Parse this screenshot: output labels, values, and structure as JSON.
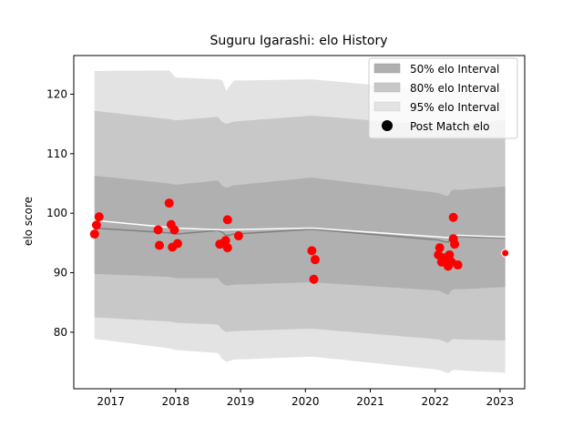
{
  "chart_data": {
    "type": "scatter",
    "title": "Suguru Igarashi: elo History",
    "xlabel": "",
    "ylabel": "elo score",
    "xlim": [
      2016.43,
      2023.38
    ],
    "ylim": [
      70.5,
      126.5
    ],
    "x_ticks": [
      2017,
      2018,
      2019,
      2020,
      2021,
      2022,
      2023
    ],
    "y_ticks": [
      80,
      90,
      100,
      110,
      120
    ],
    "colors": {
      "band_50": "#b0b0b0",
      "band_80": "#c8c8c8",
      "band_95": "#e3e3e3",
      "mean_line": "#808080",
      "post_match_line": "#ffffff",
      "points": "#ff0000"
    },
    "legend": {
      "position": "top-right",
      "entries": [
        "50% elo Interval",
        "80% elo Interval",
        "95% elo Interval",
        "Post Match elo"
      ]
    },
    "intervals": {
      "x": [
        2016.75,
        2017.9,
        2018.0,
        2018.65,
        2018.72,
        2018.78,
        2018.9,
        2020.1,
        2022.05,
        2022.15,
        2022.2,
        2022.25,
        2022.3,
        2022.35,
        2023.08
      ],
      "mean": [
        97.5,
        96.7,
        96.5,
        97.1,
        96.8,
        96.2,
        96.5,
        97.3,
        95.5,
        95.2,
        95.1,
        96.0,
        96.2,
        96.1,
        95.8
      ],
      "p50_lo": [
        89.8,
        89.3,
        89.1,
        89.1,
        88.2,
        87.8,
        88.0,
        88.4,
        87.0,
        86.5,
        86.3,
        87.0,
        87.3,
        87.2,
        87.6
      ],
      "p50_hi": [
        106.3,
        105.0,
        104.8,
        105.5,
        104.6,
        104.3,
        104.7,
        106.0,
        103.4,
        103.0,
        102.9,
        103.8,
        104.0,
        103.9,
        104.5
      ],
      "p80_lo": [
        82.5,
        81.8,
        81.6,
        81.3,
        80.4,
        80.0,
        80.2,
        80.6,
        78.8,
        78.4,
        78.2,
        78.7,
        78.9,
        78.8,
        78.6
      ],
      "p80_hi": [
        117.2,
        115.8,
        115.6,
        116.2,
        115.3,
        115.0,
        115.4,
        116.4,
        114.7,
        114.4,
        114.3,
        114.9,
        115.0,
        114.9,
        115.7
      ],
      "p95_lo": [
        78.9,
        77.3,
        77.0,
        76.5,
        75.5,
        75.0,
        75.4,
        75.9,
        73.7,
        73.3,
        73.1,
        73.5,
        73.7,
        73.6,
        73.2
      ],
      "p95_hi": [
        123.9,
        124.0,
        122.8,
        122.5,
        122.3,
        120.6,
        122.3,
        122.5,
        120.6,
        120.0,
        119.7,
        120.3,
        120.4,
        120.3,
        120.9
      ]
    },
    "post_match_line": {
      "x": [
        2016.75,
        2018.0,
        2018.72,
        2020.1,
        2022.2,
        2022.35,
        2023.08
      ],
      "y": [
        98.8,
        97.5,
        97.2,
        97.5,
        95.9,
        96.3,
        96.0
      ]
    },
    "points": [
      {
        "x": 2016.75,
        "y": 96.5
      },
      {
        "x": 2016.78,
        "y": 98.0
      },
      {
        "x": 2016.82,
        "y": 99.4
      },
      {
        "x": 2017.73,
        "y": 97.2
      },
      {
        "x": 2017.75,
        "y": 94.6
      },
      {
        "x": 2017.9,
        "y": 101.7
      },
      {
        "x": 2017.93,
        "y": 98.1
      },
      {
        "x": 2017.95,
        "y": 94.3
      },
      {
        "x": 2017.98,
        "y": 97.2
      },
      {
        "x": 2018.03,
        "y": 94.9
      },
      {
        "x": 2018.68,
        "y": 94.8
      },
      {
        "x": 2018.73,
        "y": 94.9
      },
      {
        "x": 2018.77,
        "y": 95.4
      },
      {
        "x": 2018.8,
        "y": 98.9
      },
      {
        "x": 2018.8,
        "y": 94.2
      },
      {
        "x": 2018.97,
        "y": 96.2
      },
      {
        "x": 2020.1,
        "y": 93.7
      },
      {
        "x": 2020.13,
        "y": 88.9
      },
      {
        "x": 2020.15,
        "y": 92.2
      },
      {
        "x": 2022.05,
        "y": 93.0
      },
      {
        "x": 2022.07,
        "y": 94.2
      },
      {
        "x": 2022.1,
        "y": 91.8
      },
      {
        "x": 2022.14,
        "y": 92.5
      },
      {
        "x": 2022.18,
        "y": 91.6
      },
      {
        "x": 2022.2,
        "y": 91.1
      },
      {
        "x": 2022.22,
        "y": 93.0
      },
      {
        "x": 2022.25,
        "y": 91.8
      },
      {
        "x": 2022.28,
        "y": 99.3
      },
      {
        "x": 2022.28,
        "y": 95.7
      },
      {
        "x": 2022.3,
        "y": 94.8
      },
      {
        "x": 2022.35,
        "y": 91.3
      },
      {
        "x": 2023.08,
        "y": 93.3
      }
    ]
  }
}
